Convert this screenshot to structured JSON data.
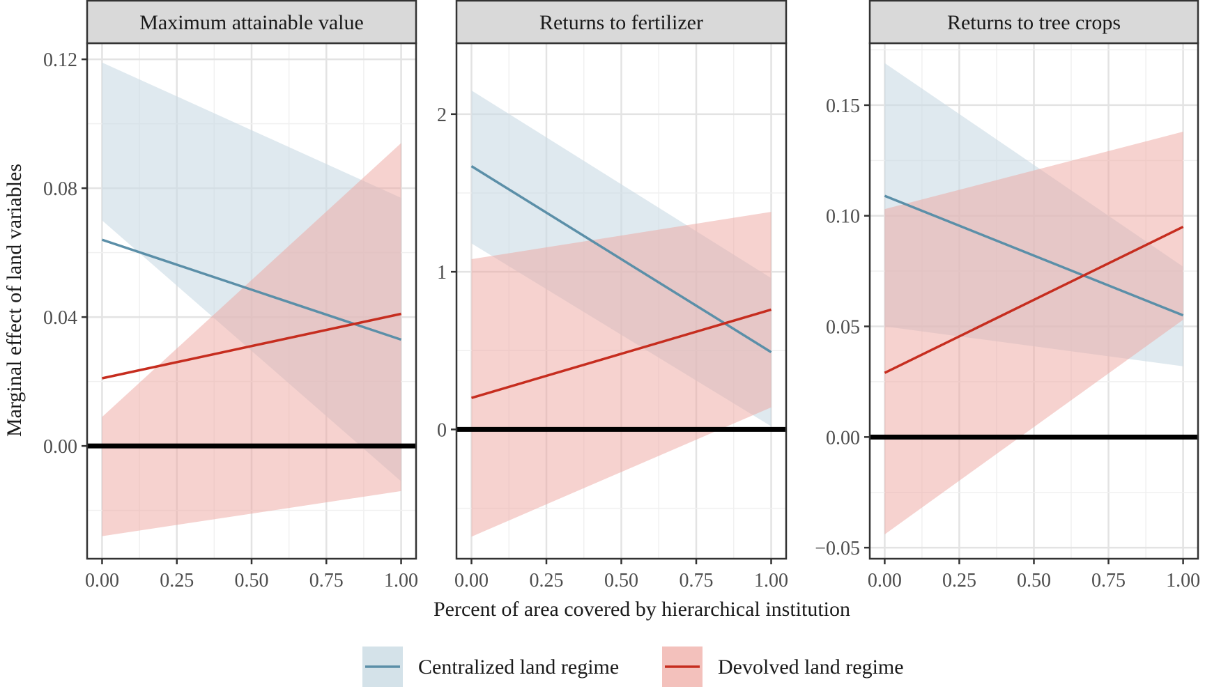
{
  "chart_data": {
    "type": "line",
    "xlabel": "Percent of area covered by hierarchical institution",
    "ylabel": "Marginal effect of land variables",
    "legend": {
      "position": "bottom",
      "entries": [
        {
          "label": "Centralized land regime",
          "color": "#5b8fa8",
          "band_color": "#c9dbe4"
        },
        {
          "label": "Devolved land regime",
          "color": "#c62d1f",
          "band_color": "#eea6a0"
        }
      ]
    },
    "reference_line": 0,
    "grid": true,
    "panels": [
      {
        "title": "Maximum attainable value",
        "xlim": [
          -0.05,
          1.05
        ],
        "ylim": [
          -0.035,
          0.125
        ],
        "xticks": [
          "0.00",
          "0.25",
          "0.50",
          "0.75",
          "1.00"
        ],
        "yticks": [
          "0.00",
          "0.04",
          "0.08",
          "0.12"
        ],
        "series": [
          {
            "name": "Centralized land regime",
            "x": [
              0,
              1
            ],
            "y": [
              0.064,
              0.033
            ],
            "lower": [
              0.07,
              -0.011
            ],
            "upper": [
              0.119,
              0.077
            ]
          },
          {
            "name": "Devolved land regime",
            "x": [
              0,
              1
            ],
            "y": [
              0.021,
              0.041
            ],
            "lower": [
              -0.028,
              -0.014
            ],
            "upper": [
              0.009,
              0.094
            ]
          }
        ]
      },
      {
        "title": "Returns to fertilizer",
        "xlim": [
          -0.05,
          1.05
        ],
        "ylim": [
          -0.82,
          2.45
        ],
        "xticks": [
          "0.00",
          "0.25",
          "0.50",
          "0.75",
          "1.00"
        ],
        "yticks": [
          "0",
          "1",
          "2"
        ],
        "series": [
          {
            "name": "Centralized land regime",
            "x": [
              0,
              1
            ],
            "y": [
              1.67,
              0.49
            ],
            "lower": [
              1.18,
              0.02
            ],
            "upper": [
              2.15,
              0.96
            ]
          },
          {
            "name": "Devolved land regime",
            "x": [
              0,
              1
            ],
            "y": [
              0.2,
              0.76
            ],
            "lower": [
              -0.68,
              0.14
            ],
            "upper": [
              1.08,
              1.38
            ]
          }
        ]
      },
      {
        "title": "Returns to tree crops",
        "xlim": [
          -0.05,
          1.05
        ],
        "ylim": [
          -0.055,
          0.178
        ],
        "xticks": [
          "0.00",
          "0.25",
          "0.50",
          "0.75",
          "1.00"
        ],
        "yticks": [
          "-0.05",
          "0.00",
          "0.05",
          "0.10",
          "0.15"
        ],
        "series": [
          {
            "name": "Centralized land regime",
            "x": [
              0,
              1
            ],
            "y": [
              0.109,
              0.055
            ],
            "lower": [
              0.05,
              0.032
            ],
            "upper": [
              0.169,
              0.077
            ]
          },
          {
            "name": "Devolved land regime",
            "x": [
              0,
              1
            ],
            "y": [
              0.029,
              0.095
            ],
            "lower": [
              -0.044,
              0.053
            ],
            "upper": [
              0.103,
              0.138
            ]
          }
        ]
      }
    ]
  }
}
